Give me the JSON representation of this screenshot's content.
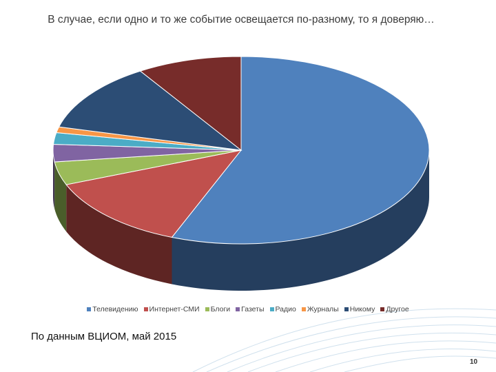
{
  "slide": {
    "title": "В случае, если одно и то же событие освещается по-разному, то я доверяю…",
    "source_note": "По данным ВЦИОМ, май 2015",
    "page_number": "10"
  },
  "chart_data": {
    "type": "pie",
    "title": "В случае, если одно и то же событие освещается по-разному, то я доверяю…",
    "style": "3d-exploded-none",
    "legend_position": "bottom",
    "categories": [
      "Телевидению",
      "Интернет-СМИ",
      "Блоги",
      "Газеты",
      "Радио",
      "Журналы",
      "Никому",
      "Другое"
    ],
    "values": [
      56,
      13,
      4,
      3,
      2,
      1,
      12,
      9
    ],
    "colors": [
      "#4f81bd",
      "#c0504d",
      "#9bbb59",
      "#8064a2",
      "#4bacc6",
      "#f79646",
      "#2c4d75",
      "#772c2a"
    ],
    "side_colors": [
      "#253e5e",
      "#5e2523",
      "#4a5e2a",
      "#3f3150",
      "#255560",
      "#7a4a22",
      "#16263a",
      "#3b1615"
    ]
  }
}
